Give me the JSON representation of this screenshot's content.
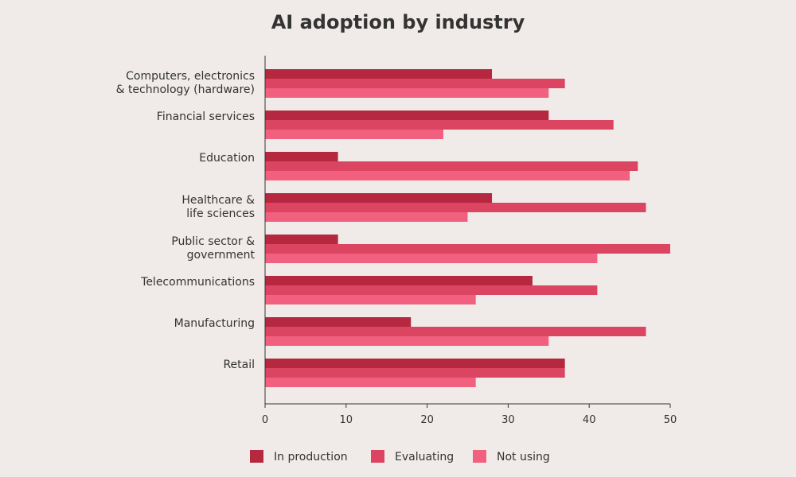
{
  "chart_data": {
    "type": "bar",
    "orientation": "horizontal",
    "title": "AI adoption by industry",
    "categories": [
      [
        "Computers, electronics",
        "& technology (hardware)"
      ],
      [
        "Financial services"
      ],
      [
        "Education"
      ],
      [
        "Healthcare &",
        "life sciences"
      ],
      [
        "Public sector &",
        "government"
      ],
      [
        "Telecommunications"
      ],
      [
        "Manufacturing"
      ],
      [
        "Retail"
      ]
    ],
    "series": [
      {
        "name": "In production",
        "color": "#b5283f",
        "values": [
          28,
          35,
          9,
          28,
          9,
          33,
          18,
          37
        ]
      },
      {
        "name": "Evaluating",
        "color": "#dc4561",
        "values": [
          37,
          43,
          46,
          47,
          50,
          41,
          47,
          37
        ]
      },
      {
        "name": "Not using",
        "color": "#f2607f",
        "values": [
          35,
          22,
          45,
          25,
          41,
          26,
          35,
          26
        ]
      }
    ],
    "xlim": [
      0,
      50
    ],
    "xticks": [
      "0",
      "10",
      "20",
      "30",
      "40",
      "50"
    ],
    "grid": false,
    "legend_position": "bottom"
  },
  "colors": {
    "background": "#f0ebe8",
    "axis": "#333333",
    "text": "#333333"
  }
}
